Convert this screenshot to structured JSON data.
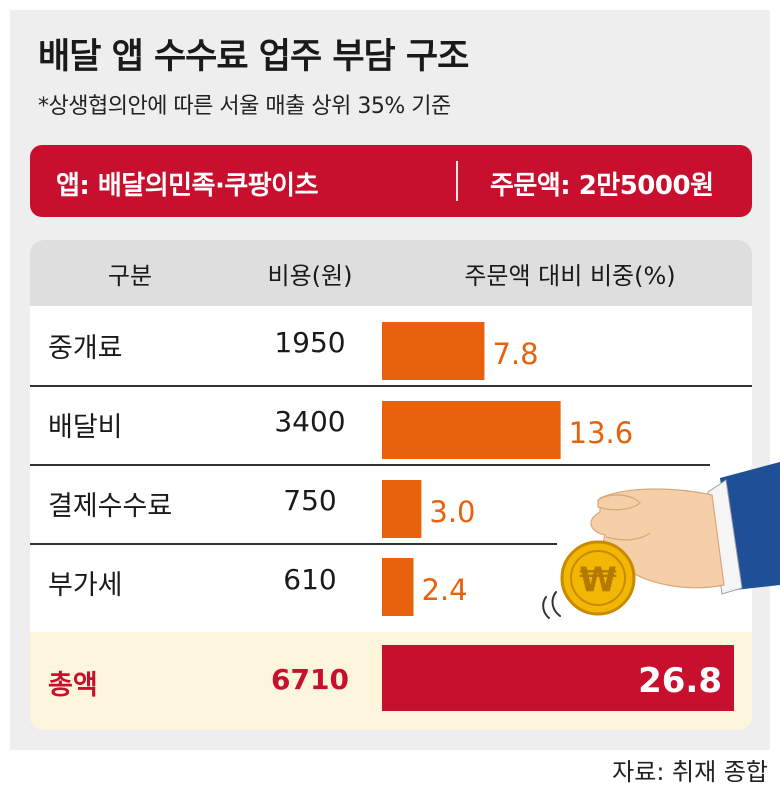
{
  "header": {
    "title": "배달 앱 수수료 업주 부담 구조",
    "subtitle": "*상생협의안에 따른 서울 매출 상위 35% 기준"
  },
  "banner": {
    "app": "앱: 배달의민족·쿠팡이츠",
    "order_amount": "주문액: 2만5000원",
    "color": "#c8102e"
  },
  "table": {
    "columns": [
      "구분",
      "비용(원)",
      "주문액 대비 비중(%)"
    ]
  },
  "chart_data": {
    "type": "bar",
    "orientation": "horizontal",
    "categories": [
      "중개료",
      "배달비",
      "결제수수료",
      "부가세",
      "총액"
    ],
    "cost_won": [
      1950,
      3400,
      750,
      610,
      6710
    ],
    "values": [
      7.8,
      13.6,
      3.0,
      2.4,
      26.8
    ],
    "value_labels": [
      "7.8",
      "13.6",
      "3.0",
      "2.4",
      "26.8"
    ],
    "cost_labels": [
      "1950",
      "3400",
      "750",
      "610",
      "6710"
    ],
    "colors": {
      "bar": "#e8620e",
      "total_bar": "#c8102e",
      "total_text": "#c8102e",
      "total_band": "#fdf6dc"
    },
    "grid": false,
    "legend": "none"
  },
  "source": "자료: 취재 종합"
}
